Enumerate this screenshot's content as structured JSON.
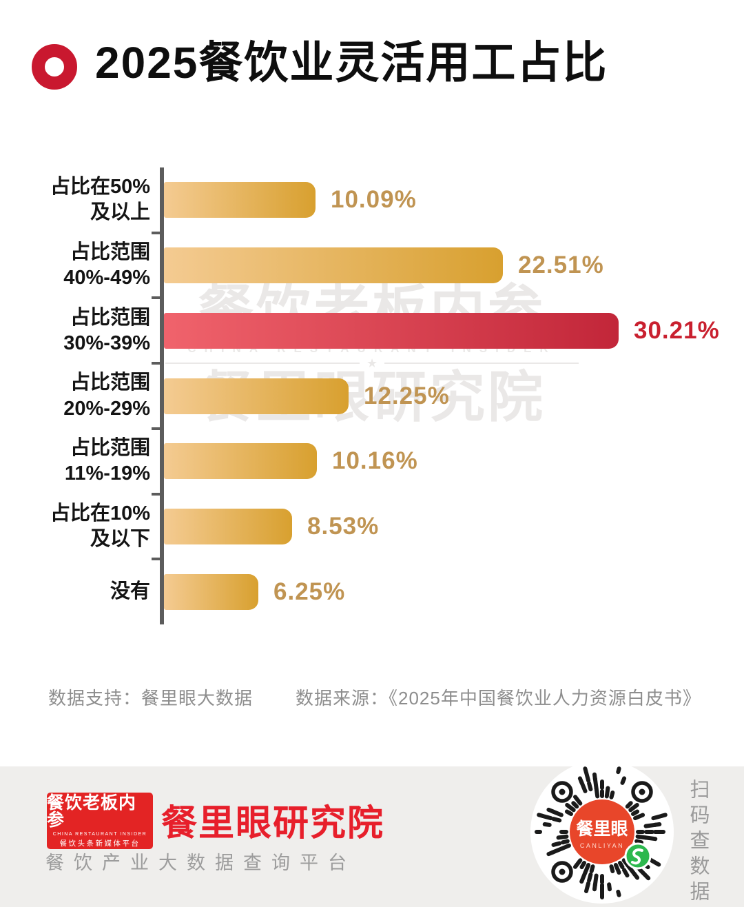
{
  "header": {
    "title": "2025餐饮业灵活用工占比"
  },
  "chart_data": {
    "type": "bar",
    "orientation": "horizontal",
    "title": "2025餐饮业灵活用工占比",
    "xlabel": "",
    "ylabel": "",
    "categories": [
      "占比在50%\n及以上",
      "占比范围\n40%-49%",
      "占比范围\n30%-39%",
      "占比范围\n20%-29%",
      "占比范围\n11%-19%",
      "占比在10%\n及以下",
      "没有"
    ],
    "values": [
      10.09,
      22.51,
      30.21,
      12.25,
      10.16,
      8.53,
      6.25
    ],
    "value_labels": [
      "10.09%",
      "22.51%",
      "30.21%",
      "12.25%",
      "10.16%",
      "8.53%",
      "6.25%"
    ],
    "highlighted_index": 2,
    "xlim": [
      0,
      32
    ],
    "grid": false,
    "legend": false,
    "bar_color_gradient": [
      "#f4cb92",
      "#d8a02f"
    ],
    "highlight_color_gradient": [
      "#f0636c",
      "#c22639"
    ],
    "value_color": "#c09452",
    "highlight_value_color": "#c9202f"
  },
  "watermark": {
    "line1": "餐饮老板内参",
    "line2": "CHINA RESTAURANT INSIDER",
    "star": "★",
    "line3": "餐里眼研究院"
  },
  "source_row": {
    "support": "数据支持：餐里眼大数据",
    "source": "数据来源：《2025年中国餐饮业人力资源白皮书》"
  },
  "footer": {
    "logo_box": {
      "title": "餐饮老板内参",
      "subtitle": "CHINA RESTAURANT INSIDER",
      "tagline": "餐饮头条新媒体平台"
    },
    "brand": "餐里眼研究院",
    "brand_tagline": "餐饮产业大数据查询平台",
    "qr": {
      "center_title": "餐里眼",
      "center_subtitle": "CANLIYAN"
    },
    "scan_text": "扫码查数据",
    "colors": {
      "brand_red": "#e71f2b",
      "qr_center": "#e8462a",
      "qr_badge_green": "#2cb84d"
    }
  }
}
